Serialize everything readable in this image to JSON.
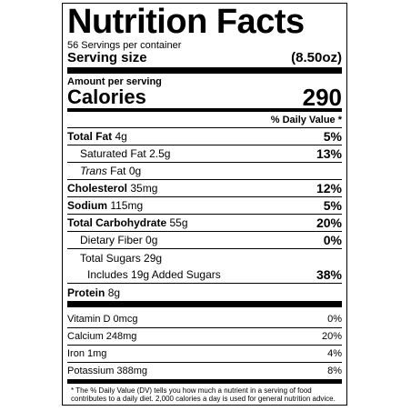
{
  "label": {
    "title": "Nutrition Facts",
    "servings": "56 Servings per  container",
    "serving_size_label": "Serving size",
    "serving_size_value": "(8.50oz)",
    "amount_per_serving": "Amount per serving",
    "calories_label": "Calories",
    "calories_value": "290",
    "daily_value_header": "% Daily Value *",
    "nutrients": [
      {
        "name": "Total Fat",
        "amount": "4g",
        "dv": "5%"
      },
      {
        "name": "Saturated Fat",
        "amount": "2.5g",
        "dv": "13%"
      },
      {
        "name_italic": "Trans",
        "name": "Fat",
        "amount": "0g",
        "dv": ""
      },
      {
        "name": "Cholesterol",
        "amount": "35mg",
        "dv": "12%"
      },
      {
        "name": "Sodium",
        "amount": "115mg",
        "dv": "5%"
      },
      {
        "name": "Total Carbohydrate",
        "amount": "55g",
        "dv": "20%"
      },
      {
        "name": "Dietary Fiber",
        "amount": "0g",
        "dv": "0%"
      },
      {
        "name": "Total Sugars",
        "amount": "29g",
        "dv": ""
      },
      {
        "name": "Includes 19g Added Sugars",
        "amount": "",
        "dv": "38%"
      },
      {
        "name": "Protein",
        "amount": "8g",
        "dv": ""
      }
    ],
    "vitamins": [
      {
        "name": "Vitamin D 0mcg",
        "dv": "0%"
      },
      {
        "name": "Calcium 248mg",
        "dv": "20%"
      },
      {
        "name": "Iron 1mg",
        "dv": "4%"
      },
      {
        "name": "Potassium 388mg",
        "dv": "8%"
      }
    ],
    "footnote": "* The % Daily Value (DV) tells you how much a nutrient in a serving of food contributes to a daily diet. 2,000 calories a day is used for general nutrition advice."
  }
}
